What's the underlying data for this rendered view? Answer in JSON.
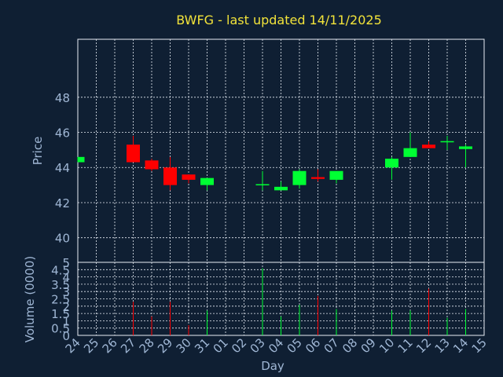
{
  "colors": {
    "background": "#0f1f33",
    "grid": "#e8eef6",
    "axis_text": "#9fb6d4",
    "title": "#f2e33a",
    "up": "#00ff33",
    "down": "#ff0000"
  },
  "chart_data": {
    "type": "candlestick",
    "title": "BWFG - last updated 14/11/2025",
    "xlabel": "Day",
    "price_ylabel": "Price",
    "volume_ylabel": "Volume (0000)",
    "price_ylim": [
      38.6,
      51.3
    ],
    "price_yticks": [
      "40",
      "42",
      "44",
      "46",
      "48"
    ],
    "price_ytick_values": [
      40,
      42,
      44,
      46,
      48
    ],
    "volume_ylim": [
      0,
      5
    ],
    "volume_yticks": [
      "0",
      "0.5",
      "1",
      "1.5",
      "2",
      "2.5",
      "3",
      "3.5",
      "4",
      "4.5",
      "5"
    ],
    "volume_ytick_values": [
      0,
      0.5,
      1,
      1.5,
      2,
      2.5,
      3,
      3.5,
      4,
      4.5,
      5
    ],
    "x_ticks": [
      "24",
      "25",
      "26",
      "27",
      "28",
      "29",
      "30",
      "31",
      "01",
      "02",
      "03",
      "04",
      "05",
      "06",
      "07",
      "08",
      "09",
      "10",
      "11",
      "12",
      "13",
      "14",
      "15"
    ],
    "candles": [
      {
        "day": 0,
        "open": 44.3,
        "close": 44.6,
        "high": 44.6,
        "low": 44.3
      },
      {
        "day": 3,
        "open": 45.3,
        "close": 44.3,
        "high": 45.8,
        "low": 44.3
      },
      {
        "day": 4,
        "open": 44.4,
        "close": 43.9,
        "high": 44.5,
        "low": 43.8
      },
      {
        "day": 5,
        "open": 44.0,
        "close": 43.0,
        "high": 44.6,
        "low": 42.7
      },
      {
        "day": 6,
        "open": 43.6,
        "close": 43.3,
        "high": 43.6,
        "low": 43.1
      },
      {
        "day": 7,
        "open": 43.0,
        "close": 43.4,
        "high": 43.4,
        "low": 42.7
      },
      {
        "day": 10,
        "open": 43.0,
        "close": 43.05,
        "high": 43.8,
        "low": 42.7
      },
      {
        "day": 11,
        "open": 42.7,
        "close": 42.9,
        "high": 43.2,
        "low": 42.7
      },
      {
        "day": 12,
        "open": 43.0,
        "close": 43.8,
        "high": 43.9,
        "low": 42.8
      },
      {
        "day": 13,
        "open": 43.45,
        "close": 43.35,
        "high": 43.9,
        "low": 43.2
      },
      {
        "day": 14,
        "open": 43.3,
        "close": 43.8,
        "high": 43.8,
        "low": 43.1
      },
      {
        "day": 17,
        "open": 44.0,
        "close": 44.5,
        "high": 44.6,
        "low": 43.3
      },
      {
        "day": 18,
        "open": 44.6,
        "close": 45.1,
        "high": 46.0,
        "low": 44.6
      },
      {
        "day": 19,
        "open": 45.3,
        "close": 45.1,
        "high": 45.5,
        "low": 45.1
      },
      {
        "day": 20,
        "open": 45.45,
        "close": 45.5,
        "high": 45.8,
        "low": 45.0
      },
      {
        "day": 21,
        "open": 45.05,
        "close": 45.2,
        "high": 45.3,
        "low": 44.0
      }
    ],
    "volume": [
      {
        "day": 3,
        "value": 2.3,
        "dir": "down"
      },
      {
        "day": 4,
        "value": 1.3,
        "dir": "down"
      },
      {
        "day": 5,
        "value": 2.3,
        "dir": "down"
      },
      {
        "day": 6,
        "value": 0.7,
        "dir": "down"
      },
      {
        "day": 7,
        "value": 1.7,
        "dir": "up"
      },
      {
        "day": 10,
        "value": 4.6,
        "dir": "up"
      },
      {
        "day": 11,
        "value": 1.3,
        "dir": "up"
      },
      {
        "day": 12,
        "value": 2.1,
        "dir": "up"
      },
      {
        "day": 13,
        "value": 2.7,
        "dir": "down"
      },
      {
        "day": 14,
        "value": 1.8,
        "dir": "up"
      },
      {
        "day": 17,
        "value": 1.7,
        "dir": "up"
      },
      {
        "day": 18,
        "value": 1.7,
        "dir": "up"
      },
      {
        "day": 19,
        "value": 3.2,
        "dir": "down"
      },
      {
        "day": 20,
        "value": 1.2,
        "dir": "up"
      },
      {
        "day": 21,
        "value": 1.8,
        "dir": "up"
      }
    ],
    "grid": true
  }
}
